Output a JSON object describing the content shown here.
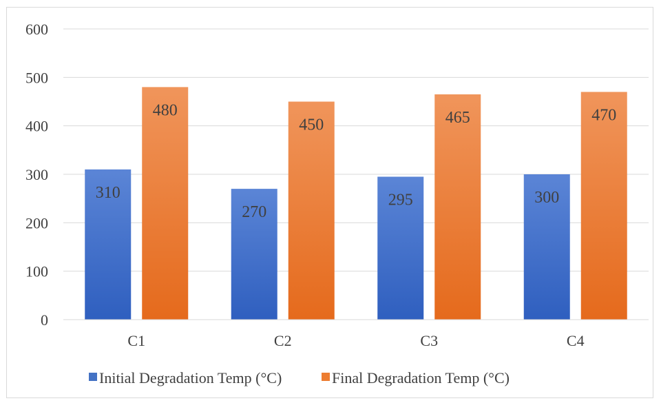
{
  "chart_data": {
    "type": "bar",
    "categories": [
      "C1",
      "C2",
      "C3",
      "C4"
    ],
    "series": [
      {
        "name": "Initial Degradation Temp (°C)",
        "values": [
          310,
          270,
          295,
          300
        ],
        "color": "#4472C4",
        "color_light": "#5b85d6",
        "color_dark": "#2f5fbf"
      },
      {
        "name": "Final Degradation Temp (°C)",
        "values": [
          480,
          450,
          465,
          470
        ],
        "color": "#ED7D31",
        "color_light": "#f0955b",
        "color_dark": "#e56a1c"
      }
    ],
    "ylim": [
      0,
      600
    ],
    "yticks": [
      0,
      100,
      200,
      300,
      400,
      500,
      600
    ],
    "grid": true,
    "legend_position": "bottom"
  }
}
